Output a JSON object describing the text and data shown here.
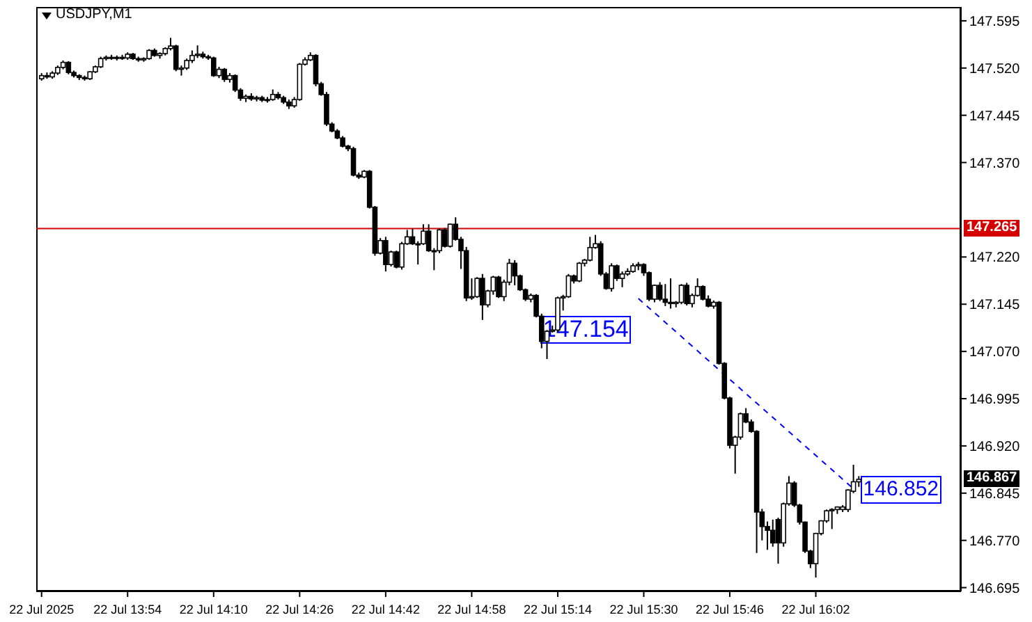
{
  "chart_data": {
    "type": "candlestick",
    "title": "USDJPY,M1",
    "color": "#000000",
    "x": [
      "2025-07-22T13:38",
      "2025-07-22T13:39",
      "2025-07-22T13:40",
      "2025-07-22T13:41",
      "2025-07-22T13:42",
      "2025-07-22T13:43",
      "2025-07-22T13:44",
      "2025-07-22T13:45",
      "2025-07-22T13:46",
      "2025-07-22T13:47",
      "2025-07-22T13:48",
      "2025-07-22T13:49",
      "2025-07-22T13:50",
      "2025-07-22T13:51",
      "2025-07-22T13:52",
      "2025-07-22T13:53",
      "2025-07-22T13:54",
      "2025-07-22T13:55",
      "2025-07-22T13:56",
      "2025-07-22T13:57",
      "2025-07-22T13:58",
      "2025-07-22T13:59",
      "2025-07-22T14:00",
      "2025-07-22T14:01",
      "2025-07-22T14:02",
      "2025-07-22T14:03",
      "2025-07-22T14:04",
      "2025-07-22T14:05",
      "2025-07-22T14:06",
      "2025-07-22T14:07",
      "2025-07-22T14:08",
      "2025-07-22T14:09",
      "2025-07-22T14:10",
      "2025-07-22T14:11",
      "2025-07-22T14:12",
      "2025-07-22T14:13",
      "2025-07-22T14:14",
      "2025-07-22T14:15",
      "2025-07-22T14:16",
      "2025-07-22T14:17",
      "2025-07-22T14:18",
      "2025-07-22T14:19",
      "2025-07-22T14:20",
      "2025-07-22T14:21",
      "2025-07-22T14:22",
      "2025-07-22T14:23",
      "2025-07-22T14:24",
      "2025-07-22T14:25",
      "2025-07-22T14:26",
      "2025-07-22T14:27",
      "2025-07-22T14:28",
      "2025-07-22T14:29",
      "2025-07-22T14:30",
      "2025-07-22T14:31",
      "2025-07-22T14:32",
      "2025-07-22T14:33",
      "2025-07-22T14:34",
      "2025-07-22T14:35",
      "2025-07-22T14:36",
      "2025-07-22T14:37",
      "2025-07-22T14:38",
      "2025-07-22T14:39",
      "2025-07-22T14:40",
      "2025-07-22T14:41",
      "2025-07-22T14:42",
      "2025-07-22T14:43",
      "2025-07-22T14:44",
      "2025-07-22T14:45",
      "2025-07-22T14:46",
      "2025-07-22T14:47",
      "2025-07-22T14:48",
      "2025-07-22T14:49",
      "2025-07-22T14:50",
      "2025-07-22T14:51",
      "2025-07-22T14:52",
      "2025-07-22T14:53",
      "2025-07-22T14:54",
      "2025-07-22T14:55",
      "2025-07-22T14:56",
      "2025-07-22T14:57",
      "2025-07-22T14:58",
      "2025-07-22T14:59",
      "2025-07-22T15:00",
      "2025-07-22T15:01",
      "2025-07-22T15:02",
      "2025-07-22T15:03",
      "2025-07-22T15:04",
      "2025-07-22T15:05",
      "2025-07-22T15:06",
      "2025-07-22T15:07",
      "2025-07-22T15:08",
      "2025-07-22T15:09",
      "2025-07-22T15:10",
      "2025-07-22T15:11",
      "2025-07-22T15:12",
      "2025-07-22T15:13",
      "2025-07-22T15:14",
      "2025-07-22T15:15",
      "2025-07-22T15:16",
      "2025-07-22T15:17",
      "2025-07-22T15:18",
      "2025-07-22T15:19",
      "2025-07-22T15:20",
      "2025-07-22T15:21",
      "2025-07-22T15:22",
      "2025-07-22T15:23",
      "2025-07-22T15:24",
      "2025-07-22T15:25",
      "2025-07-22T15:26",
      "2025-07-22T15:27",
      "2025-07-22T15:28",
      "2025-07-22T15:29",
      "2025-07-22T15:30",
      "2025-07-22T15:31",
      "2025-07-22T15:32",
      "2025-07-22T15:33",
      "2025-07-22T15:34",
      "2025-07-22T15:35",
      "2025-07-22T15:36",
      "2025-07-22T15:37",
      "2025-07-22T15:38",
      "2025-07-22T15:39",
      "2025-07-22T15:40",
      "2025-07-22T15:41",
      "2025-07-22T15:42",
      "2025-07-22T15:43",
      "2025-07-22T15:44",
      "2025-07-22T15:45",
      "2025-07-22T15:46",
      "2025-07-22T15:47",
      "2025-07-22T15:48",
      "2025-07-22T15:49",
      "2025-07-22T15:50",
      "2025-07-22T15:51",
      "2025-07-22T15:52",
      "2025-07-22T15:53",
      "2025-07-22T15:54",
      "2025-07-22T15:55",
      "2025-07-22T15:56",
      "2025-07-22T15:57",
      "2025-07-22T15:58",
      "2025-07-22T15:59",
      "2025-07-22T16:00",
      "2025-07-22T16:01",
      "2025-07-22T16:02",
      "2025-07-22T16:03",
      "2025-07-22T16:04",
      "2025-07-22T16:05",
      "2025-07-22T16:06",
      "2025-07-22T16:07",
      "2025-07-22T16:08",
      "2025-07-22T16:09",
      "2025-07-22T16:10"
    ],
    "ohlc": [
      [
        147.503,
        147.512,
        147.5,
        147.508
      ],
      [
        147.508,
        147.513,
        147.503,
        147.506
      ],
      [
        147.506,
        147.515,
        147.503,
        147.512
      ],
      [
        147.512,
        147.524,
        147.509,
        147.521
      ],
      [
        147.521,
        147.532,
        147.518,
        147.529
      ],
      [
        147.529,
        147.531,
        147.51,
        147.513
      ],
      [
        147.513,
        147.516,
        147.505,
        147.508
      ],
      [
        147.508,
        147.51,
        147.501,
        147.505
      ],
      [
        147.505,
        147.508,
        147.5,
        147.503
      ],
      [
        147.503,
        147.515,
        147.501,
        147.514
      ],
      [
        147.514,
        147.524,
        147.512,
        147.522
      ],
      [
        147.522,
        147.538,
        147.52,
        147.535
      ],
      [
        147.535,
        147.54,
        147.532,
        147.537
      ],
      [
        147.537,
        147.541,
        147.533,
        147.536
      ],
      [
        147.536,
        147.54,
        147.532,
        147.537
      ],
      [
        147.537,
        147.541,
        147.533,
        147.536
      ],
      [
        147.536,
        147.545,
        147.533,
        147.542
      ],
      [
        147.542,
        147.544,
        147.533,
        147.535
      ],
      [
        147.535,
        147.538,
        147.53,
        147.533
      ],
      [
        147.533,
        147.537,
        147.53,
        147.535
      ],
      [
        147.535,
        147.55,
        147.533,
        147.548
      ],
      [
        147.548,
        147.551,
        147.538,
        147.54
      ],
      [
        147.54,
        147.545,
        147.535,
        147.543
      ],
      [
        147.543,
        147.553,
        147.54,
        147.551
      ],
      [
        147.551,
        147.568,
        147.548,
        147.555
      ],
      [
        147.555,
        147.557,
        147.515,
        147.518
      ],
      [
        147.518,
        147.524,
        147.508,
        147.52
      ],
      [
        147.52,
        147.535,
        147.517,
        147.532
      ],
      [
        147.532,
        147.548,
        147.528,
        147.54
      ],
      [
        147.54,
        147.556,
        147.536,
        147.542
      ],
      [
        147.542,
        147.546,
        147.535,
        147.538
      ],
      [
        147.538,
        147.541,
        147.533,
        147.536
      ],
      [
        147.536,
        147.538,
        147.506,
        147.508
      ],
      [
        147.508,
        147.522,
        147.504,
        147.518
      ],
      [
        147.518,
        147.52,
        147.498,
        147.502
      ],
      [
        147.502,
        147.512,
        147.497,
        147.508
      ],
      [
        147.508,
        147.51,
        147.482,
        147.485
      ],
      [
        147.485,
        147.488,
        147.468,
        147.472
      ],
      [
        147.472,
        147.478,
        147.466,
        147.475
      ],
      [
        147.475,
        147.48,
        147.468,
        147.471
      ],
      [
        147.471,
        147.476,
        147.467,
        147.473
      ],
      [
        147.473,
        147.476,
        147.466,
        147.469
      ],
      [
        147.469,
        147.474,
        147.465,
        147.47
      ],
      [
        147.47,
        147.486,
        147.468,
        147.478
      ],
      [
        147.478,
        147.482,
        147.47,
        147.473
      ],
      [
        147.473,
        147.476,
        147.463,
        147.466
      ],
      [
        147.466,
        147.47,
        147.455,
        147.46
      ],
      [
        147.46,
        147.474,
        147.457,
        147.47
      ],
      [
        147.47,
        147.528,
        147.468,
        147.526
      ],
      [
        147.526,
        147.537,
        147.524,
        147.533
      ],
      [
        147.533,
        147.545,
        147.531,
        147.54
      ],
      [
        147.54,
        147.542,
        147.491,
        147.495
      ],
      [
        147.495,
        147.498,
        147.476,
        147.478
      ],
      [
        147.478,
        147.482,
        147.428,
        147.431
      ],
      [
        147.431,
        147.434,
        147.418,
        147.42
      ],
      [
        147.42,
        147.423,
        147.407,
        147.409
      ],
      [
        147.409,
        147.412,
        147.394,
        147.396
      ],
      [
        147.396,
        147.398,
        147.388,
        147.392
      ],
      [
        147.392,
        147.395,
        147.348,
        147.35
      ],
      [
        147.35,
        147.354,
        147.344,
        147.347
      ],
      [
        147.347,
        147.358,
        147.345,
        147.356
      ],
      [
        147.356,
        147.358,
        147.297,
        147.299
      ],
      [
        147.299,
        147.301,
        147.222,
        147.226
      ],
      [
        147.226,
        147.25,
        147.224,
        147.246
      ],
      [
        147.246,
        147.252,
        147.197,
        147.208
      ],
      [
        147.208,
        147.23,
        147.205,
        147.228
      ],
      [
        147.228,
        147.23,
        147.202,
        147.204
      ],
      [
        147.204,
        147.244,
        147.2,
        147.241
      ],
      [
        147.241,
        147.263,
        147.239,
        147.252
      ],
      [
        147.252,
        147.265,
        147.239,
        147.241
      ],
      [
        147.241,
        147.245,
        147.208,
        147.241
      ],
      [
        147.241,
        147.272,
        147.239,
        147.261
      ],
      [
        147.261,
        147.272,
        147.228,
        147.23
      ],
      [
        147.23,
        147.234,
        147.199,
        147.23
      ],
      [
        147.23,
        147.265,
        147.226,
        147.263
      ],
      [
        147.263,
        147.266,
        147.235,
        147.237
      ],
      [
        147.237,
        147.273,
        147.235,
        147.272
      ],
      [
        147.272,
        147.283,
        147.246,
        147.248
      ],
      [
        147.248,
        147.252,
        147.201,
        147.23
      ],
      [
        147.23,
        147.236,
        147.15,
        147.155
      ],
      [
        147.155,
        147.186,
        147.152,
        147.157
      ],
      [
        147.157,
        147.188,
        147.155,
        147.186
      ],
      [
        147.186,
        147.193,
        147.12,
        147.144
      ],
      [
        147.144,
        147.168,
        147.14,
        147.166
      ],
      [
        147.166,
        147.19,
        147.16,
        147.188
      ],
      [
        147.188,
        147.19,
        147.155,
        147.157
      ],
      [
        147.157,
        147.184,
        147.15,
        147.18
      ],
      [
        147.18,
        147.217,
        147.175,
        147.21
      ],
      [
        147.21,
        147.215,
        147.175,
        147.19
      ],
      [
        147.19,
        147.192,
        147.166,
        147.168
      ],
      [
        147.168,
        147.17,
        147.15,
        147.153
      ],
      [
        147.153,
        147.162,
        147.148,
        147.159
      ],
      [
        147.159,
        147.161,
        147.124,
        147.126
      ],
      [
        147.126,
        147.13,
        147.075,
        147.086
      ],
      [
        147.086,
        147.104,
        147.058,
        147.102
      ],
      [
        147.102,
        147.111,
        147.1,
        147.104
      ],
      [
        147.104,
        147.157,
        147.1,
        147.155
      ],
      [
        147.155,
        147.16,
        147.135,
        147.157
      ],
      [
        147.157,
        147.193,
        147.155,
        147.19
      ],
      [
        147.19,
        147.192,
        147.178,
        147.182
      ],
      [
        147.182,
        147.212,
        147.18,
        147.21
      ],
      [
        147.21,
        147.217,
        147.205,
        147.215
      ],
      [
        147.215,
        147.252,
        147.213,
        147.235
      ],
      [
        147.235,
        147.255,
        147.233,
        147.241
      ],
      [
        147.241,
        147.245,
        147.19,
        147.193
      ],
      [
        147.193,
        147.196,
        147.168,
        147.17
      ],
      [
        147.17,
        147.21,
        147.165,
        147.206
      ],
      [
        147.206,
        147.208,
        147.182,
        147.186
      ],
      [
        147.186,
        147.197,
        147.172,
        147.193
      ],
      [
        147.193,
        147.202,
        147.19,
        147.197
      ],
      [
        147.197,
        147.21,
        147.195,
        147.206
      ],
      [
        147.206,
        147.212,
        147.199,
        147.208
      ],
      [
        147.208,
        147.21,
        147.19,
        147.195
      ],
      [
        147.195,
        147.197,
        147.15,
        147.153
      ],
      [
        147.153,
        147.176,
        147.148,
        147.175
      ],
      [
        147.175,
        147.18,
        147.15,
        147.153
      ],
      [
        147.153,
        147.177,
        147.142,
        147.148
      ],
      [
        147.148,
        147.186,
        147.138,
        147.146
      ],
      [
        147.146,
        147.15,
        147.14,
        147.148
      ],
      [
        147.148,
        147.177,
        147.145,
        147.175
      ],
      [
        147.175,
        147.179,
        147.143,
        147.146
      ],
      [
        147.146,
        147.162,
        147.14,
        147.159
      ],
      [
        147.159,
        147.186,
        147.157,
        147.173
      ],
      [
        147.173,
        147.175,
        147.151,
        147.153
      ],
      [
        147.153,
        147.159,
        147.14,
        147.142
      ],
      [
        147.142,
        147.151,
        147.138,
        147.148
      ],
      [
        147.148,
        147.15,
        147.049,
        147.051
      ],
      [
        147.051,
        147.053,
        146.994,
        146.996
      ],
      [
        146.996,
        146.998,
        146.916,
        146.921
      ],
      [
        146.921,
        146.936,
        146.876,
        146.934
      ],
      [
        146.934,
        146.973,
        146.93,
        146.971
      ],
      [
        146.971,
        146.98,
        146.956,
        146.958
      ],
      [
        146.958,
        146.962,
        146.941,
        146.943
      ],
      [
        146.943,
        146.945,
        146.75,
        146.815
      ],
      [
        146.815,
        146.82,
        146.77,
        146.792
      ],
      [
        146.792,
        146.8,
        146.755,
        146.786
      ],
      [
        146.786,
        146.803,
        146.76,
        146.766
      ],
      [
        146.803,
        146.806,
        146.733,
        146.766
      ],
      [
        146.766,
        146.83,
        146.76,
        146.828
      ],
      [
        146.828,
        146.872,
        146.825,
        146.861
      ],
      [
        146.861,
        146.864,
        146.823,
        146.826
      ],
      [
        146.826,
        146.828,
        146.795,
        146.799
      ],
      [
        146.799,
        146.8,
        146.75,
        146.753
      ],
      [
        146.753,
        146.755,
        146.726,
        146.733
      ],
      [
        146.733,
        146.782,
        146.711,
        146.781
      ],
      [
        146.781,
        146.802,
        146.778,
        146.801
      ],
      [
        146.801,
        146.819,
        146.798,
        146.817
      ],
      [
        146.817,
        146.821,
        146.788,
        146.819
      ],
      [
        146.819,
        146.824,
        146.812,
        146.823
      ],
      [
        146.819,
        146.826,
        146.815,
        146.823
      ],
      [
        146.819,
        146.851,
        146.815,
        146.85
      ],
      [
        146.848,
        146.89,
        146.845,
        146.863
      ],
      [
        146.863,
        146.872,
        146.855,
        146.867
      ]
    ],
    "xlim": [
      "2025-07-22T13:37",
      "2025-07-22T16:29"
    ],
    "xticks": [
      {
        "value": "2025-07-22T13:38",
        "label": "22 Jul 2025"
      },
      {
        "value": "2025-07-22T13:54",
        "label": "22 Jul 13:54"
      },
      {
        "value": "2025-07-22T14:10",
        "label": "22 Jul 14:10"
      },
      {
        "value": "2025-07-22T14:26",
        "label": "22 Jul 14:26"
      },
      {
        "value": "2025-07-22T14:42",
        "label": "22 Jul 14:42"
      },
      {
        "value": "2025-07-22T14:58",
        "label": "22 Jul 14:58"
      },
      {
        "value": "2025-07-22T15:14",
        "label": "22 Jul 15:14"
      },
      {
        "value": "2025-07-22T15:30",
        "label": "22 Jul 15:30"
      },
      {
        "value": "2025-07-22T15:46",
        "label": "22 Jul 15:46"
      },
      {
        "value": "2025-07-22T16:02",
        "label": "22 Jul 16:02"
      }
    ],
    "ylim": [
      146.689,
      147.617
    ],
    "yticks": [
      {
        "value": 147.595,
        "label": "147.595"
      },
      {
        "value": 147.52,
        "label": "147.520"
      },
      {
        "value": 147.445,
        "label": "147.445"
      },
      {
        "value": 147.37,
        "label": "147.370"
      },
      {
        "value": 147.22,
        "label": "147.220"
      },
      {
        "value": 147.145,
        "label": "147.145"
      },
      {
        "value": 147.07,
        "label": "147.070"
      },
      {
        "value": 146.995,
        "label": "146.995"
      },
      {
        "value": 146.92,
        "label": "146.920"
      },
      {
        "value": 146.845,
        "label": "146.845"
      },
      {
        "value": 146.77,
        "label": "146.770"
      },
      {
        "value": 146.695,
        "label": "146.695"
      }
    ],
    "ref_lines": [
      {
        "axis": "y",
        "value": 147.265,
        "label": "147.265",
        "color": "#d40000"
      }
    ],
    "series": [
      {
        "type": "line",
        "x": [
          "2025-07-22T15:29",
          "2025-07-22T16:09"
        ],
        "values": [
          147.154,
          146.852
        ],
        "color": "#0000ff",
        "line_style": "dashed"
      }
    ],
    "annotations": [
      {
        "text": "147.154",
        "x": "2025-07-22T15:29",
        "y": 147.154
      },
      {
        "text": "146.852",
        "x": "2025-07-22T16:09",
        "y": 146.852
      },
      "146.867"
    ]
  }
}
